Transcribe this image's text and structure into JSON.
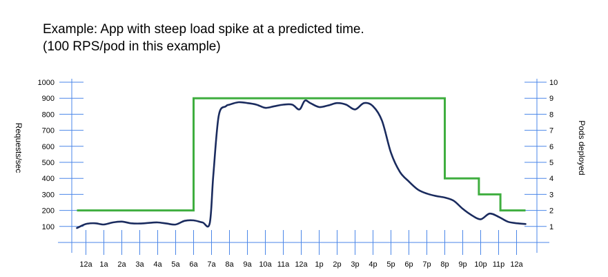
{
  "title_line1": "Example: App with steep load spike at a predicted time.",
  "title_line2": "(100 RPS/pod in this example)",
  "chart_data": {
    "type": "line",
    "ylabel_left": "Requests/sec",
    "ylabel_right": "Pods deployed",
    "y_left_ticks": [
      100,
      200,
      300,
      400,
      500,
      600,
      700,
      800,
      900,
      1000
    ],
    "y_right_ticks": [
      1,
      2,
      3,
      4,
      5,
      6,
      7,
      8,
      9,
      10
    ],
    "ylim_left": [
      0,
      1000
    ],
    "ylim_right": [
      0,
      10
    ],
    "x_tick_labels": [
      "12a",
      "1a",
      "2a",
      "3a",
      "4a",
      "5a",
      "6a",
      "7a",
      "8a",
      "9a",
      "10a",
      "11a",
      "12a",
      "1p",
      "2p",
      "3p",
      "4p",
      "5p",
      "6p",
      "7p",
      "8p",
      "9p",
      "10p",
      "11p",
      "12a"
    ],
    "xlim": [
      -0.5,
      24.5
    ],
    "grid": false,
    "colors": {
      "requests": "#1a2b5e",
      "pods": "#3fae3f",
      "axis": "#4a86e8"
    },
    "series": [
      {
        "axis": "left",
        "x": [
          -0.5,
          0,
          0.5,
          1,
          1.5,
          2,
          2.5,
          3,
          3.5,
          4,
          4.5,
          5,
          5.5,
          6,
          6.5,
          6.9,
          7.1,
          7.4,
          7.8,
          8,
          8.5,
          9,
          9.5,
          10,
          10.5,
          11,
          11.5,
          11.9,
          12.2,
          12.5,
          13,
          13.5,
          14,
          14.5,
          15,
          15.5,
          16,
          16.5,
          17,
          17.5,
          18,
          18.5,
          19,
          19.5,
          20,
          20.5,
          21,
          21.5,
          22,
          22.5,
          23,
          23.5,
          24,
          24.5
        ],
        "y": [
          90,
          115,
          120,
          112,
          125,
          130,
          120,
          118,
          122,
          125,
          118,
          112,
          135,
          138,
          125,
          120,
          420,
          790,
          850,
          860,
          875,
          870,
          860,
          840,
          850,
          860,
          860,
          830,
          885,
          870,
          845,
          855,
          870,
          860,
          830,
          870,
          850,
          760,
          560,
          440,
          380,
          330,
          305,
          290,
          280,
          260,
          210,
          170,
          145,
          180,
          160,
          130,
          120,
          115
        ],
        "values_note_omitted": true
      },
      {
        "axis": "right",
        "x": [
          -0.5,
          6,
          6,
          20,
          20,
          21.9,
          21.9,
          23.1,
          23.1,
          24.5
        ],
        "y": [
          2,
          2,
          9,
          9,
          4,
          4,
          3,
          3,
          2,
          2
        ]
      }
    ]
  }
}
